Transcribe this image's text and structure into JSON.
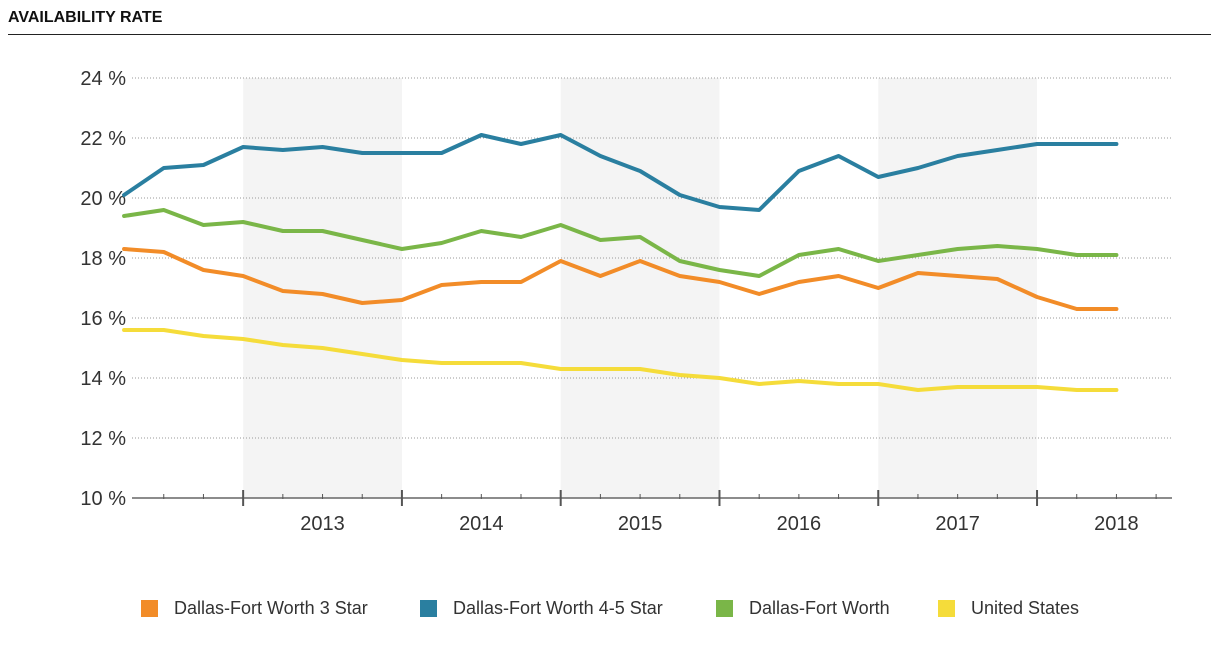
{
  "header": {
    "title": "AVAILABILITY RATE"
  },
  "chart_data": {
    "type": "line",
    "title": "AVAILABILITY RATE",
    "xlabel": "",
    "ylabel": "",
    "ylim": [
      10,
      24
    ],
    "xlim": [
      2012.3,
      2018.85
    ],
    "y_ticks": [
      "10 %",
      "12 %",
      "14 %",
      "16 %",
      "18 %",
      "20 %",
      "22 %",
      "24 %"
    ],
    "y_tick_values": [
      10,
      12,
      14,
      16,
      18,
      20,
      22,
      24
    ],
    "year_labels": [
      "2013",
      "2014",
      "2015",
      "2016",
      "2017",
      "2018"
    ],
    "year_bands": "alternating shaded years 2013, 2015, 2017",
    "grid": true,
    "legend_position": "bottom",
    "x": [
      2012.25,
      2012.5,
      2012.75,
      2013.0,
      2013.25,
      2013.5,
      2013.75,
      2014.0,
      2014.25,
      2014.5,
      2014.75,
      2015.0,
      2015.25,
      2015.5,
      2015.75,
      2016.0,
      2016.25,
      2016.5,
      2016.75,
      2017.0,
      2017.25,
      2017.5,
      2017.75,
      2018.0,
      2018.25,
      2018.5
    ],
    "series": [
      {
        "name": "Dallas-Fort Worth 3 Star",
        "color": "#F28C28",
        "values": [
          18.3,
          18.2,
          17.6,
          17.4,
          16.9,
          16.8,
          16.5,
          16.6,
          17.1,
          17.2,
          17.2,
          17.9,
          17.4,
          17.9,
          17.4,
          17.2,
          16.8,
          17.2,
          17.4,
          17.0,
          17.5,
          17.4,
          17.3,
          16.7,
          16.3,
          16.3
        ]
      },
      {
        "name": "Dallas-Fort Worth 4-5 Star",
        "color": "#2A7FA0",
        "values": [
          20.1,
          21.0,
          21.1,
          21.7,
          21.6,
          21.7,
          21.5,
          21.5,
          21.5,
          22.1,
          21.8,
          22.1,
          21.4,
          20.9,
          20.1,
          19.7,
          19.6,
          20.9,
          21.4,
          20.7,
          21.0,
          21.4,
          21.6,
          21.8,
          21.8,
          21.8
        ]
      },
      {
        "name": "Dallas-Fort Worth",
        "color": "#7AB648",
        "values": [
          19.4,
          19.6,
          19.1,
          19.2,
          18.9,
          18.9,
          18.6,
          18.3,
          18.5,
          18.9,
          18.7,
          19.1,
          18.6,
          18.7,
          17.9,
          17.6,
          17.4,
          18.1,
          18.3,
          17.9,
          18.1,
          18.3,
          18.4,
          18.3,
          18.1,
          18.1
        ]
      },
      {
        "name": "United States",
        "color": "#F5DC3A",
        "values": [
          15.6,
          15.6,
          15.4,
          15.3,
          15.1,
          15.0,
          14.8,
          14.6,
          14.5,
          14.5,
          14.5,
          14.3,
          14.3,
          14.3,
          14.1,
          14.0,
          13.8,
          13.9,
          13.8,
          13.8,
          13.6,
          13.7,
          13.7,
          13.7,
          13.6,
          13.6
        ]
      }
    ]
  }
}
